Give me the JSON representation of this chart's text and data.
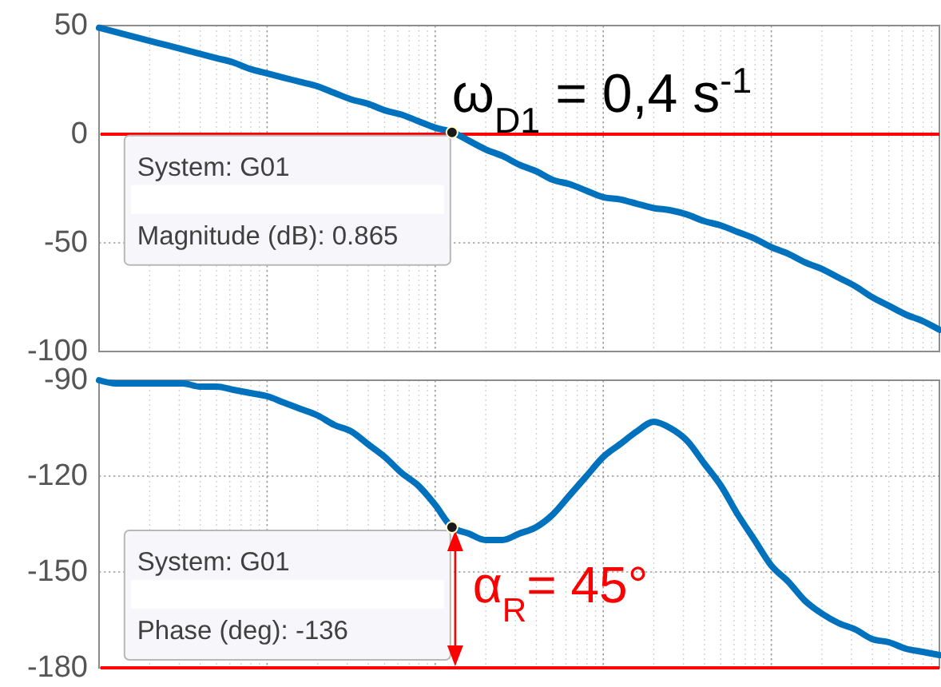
{
  "chart_data": [
    {
      "type": "line",
      "categories": [
        null,
        null,
        null,
        null,
        null,
        null,
        null,
        null,
        null,
        null,
        null,
        null,
        null,
        null,
        null,
        null,
        null,
        null,
        null,
        null,
        null,
        null,
        null,
        null,
        null,
        null,
        null,
        null,
        null,
        null,
        null,
        null,
        null,
        null,
        null,
        null,
        null,
        null,
        null,
        null,
        null,
        null,
        null,
        null,
        null,
        null,
        null,
        null,
        null,
        null,
        null
      ],
      "series": [
        {
          "type": "line",
          "color": "#0072bd",
          "values": [
            49,
            47,
            45,
            43,
            41,
            39,
            37,
            35,
            33,
            30,
            28,
            26,
            24,
            22,
            19,
            16,
            14,
            11,
            9,
            6,
            3,
            1,
            -3,
            -7,
            -10,
            -14,
            -17,
            -21,
            -23,
            -26,
            -29,
            -30,
            -32,
            -34,
            -35,
            -37,
            -40,
            -42,
            -45,
            -48,
            -52,
            -55,
            -59,
            -62,
            -66,
            -70,
            -75,
            -79,
            -83,
            -86,
            -90
          ]
        },
        {
          "type": "scatter",
          "color": "#1a1a1a",
          "values": [
            null,
            null,
            null,
            null,
            null,
            null,
            null,
            null,
            null,
            null,
            null,
            null,
            null,
            null,
            null,
            null,
            null,
            null,
            null,
            null,
            null,
            0.865,
            null,
            null,
            null,
            null,
            null,
            null,
            null,
            null,
            null,
            null,
            null,
            null,
            null,
            null,
            null,
            null,
            null,
            null,
            null,
            null,
            null,
            null,
            null,
            null,
            null,
            null,
            null,
            null,
            null
          ]
        }
      ],
      "ylim": [
        -100,
        50
      ],
      "yticks": [
        50,
        0,
        -50,
        -100
      ],
      "grid": true,
      "ref_lines": [
        {
          "axis": "y",
          "value": 0,
          "color": "#ff0000"
        }
      ],
      "annotations": [
        "System: G01",
        "Magnitude (dB): 0.865",
        "ω$_{D1}$ = 0,4 s$^{-1}$"
      ]
    },
    {
      "type": "line",
      "categories": [
        null,
        null,
        null,
        null,
        null,
        null,
        null,
        null,
        null,
        null,
        null,
        null,
        null,
        null,
        null,
        null,
        null,
        null,
        null,
        null,
        null,
        null,
        null,
        null,
        null,
        null,
        null,
        null,
        null,
        null,
        null,
        null,
        null,
        null,
        null,
        null,
        null,
        null,
        null,
        null,
        null,
        null,
        null,
        null,
        null,
        null,
        null,
        null,
        null,
        null,
        null
      ],
      "series": [
        {
          "type": "line",
          "color": "#0072bd",
          "values": [
            -90,
            -91,
            -91,
            -91,
            -91,
            -91,
            -92,
            -92,
            -93,
            -94,
            -95,
            -97,
            -99,
            -101,
            -104,
            -106,
            -110,
            -114,
            -119,
            -123,
            -129,
            -136,
            -138,
            -140,
            -140,
            -138,
            -136,
            -132,
            -126,
            -120,
            -114,
            -110,
            -106,
            -103,
            -105,
            -109,
            -116,
            -123,
            -132,
            -140,
            -148,
            -153,
            -159,
            -163,
            -166,
            -168,
            -171,
            -172,
            -174,
            -175,
            -176
          ]
        },
        {
          "type": "scatter",
          "color": "#1a1a1a",
          "values": [
            null,
            null,
            null,
            null,
            null,
            null,
            null,
            null,
            null,
            null,
            null,
            null,
            null,
            null,
            null,
            null,
            null,
            null,
            null,
            null,
            null,
            -136,
            null,
            null,
            null,
            null,
            null,
            null,
            null,
            null,
            null,
            null,
            null,
            null,
            null,
            null,
            null,
            null,
            null,
            null,
            null,
            null,
            null,
            null,
            null,
            null,
            null,
            null,
            null,
            null,
            null
          ]
        }
      ],
      "ylim": [
        -180,
        -90
      ],
      "yticks": [
        -90,
        -120,
        -150,
        -180
      ],
      "grid": true,
      "ref_lines": [
        {
          "axis": "y",
          "value": -180,
          "color": "#ff0000"
        }
      ],
      "annotations": [
        "System: G01",
        "Phase (deg): -136",
        "α$_{R}$= 45°"
      ]
    }
  ]
}
